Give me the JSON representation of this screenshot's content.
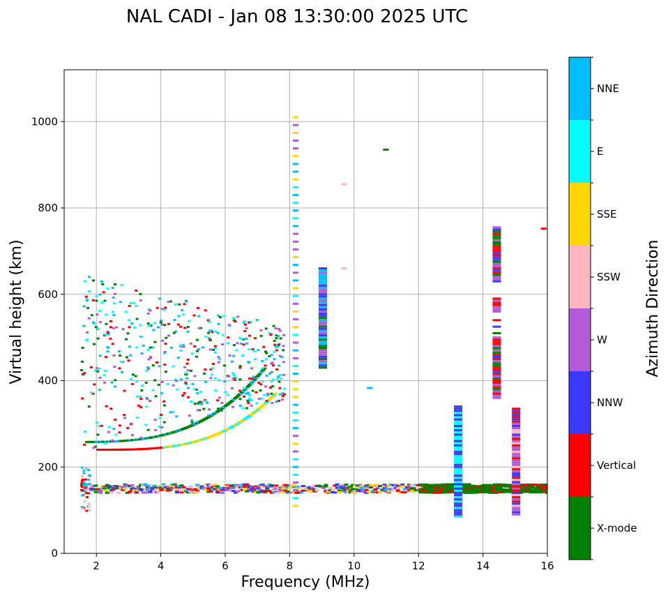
{
  "chart_data": {
    "type": "scatter",
    "title": "NAL CADI - Jan 08 13:30:00 2025 UTC",
    "xlabel": "Frequency (MHz)",
    "ylabel": "Virtual height (km)",
    "xlim": [
      1,
      16
    ],
    "ylim": [
      0,
      1120
    ],
    "xticks": [
      2,
      4,
      6,
      8,
      10,
      12,
      14,
      16
    ],
    "yticks": [
      0,
      200,
      400,
      600,
      800,
      1000
    ],
    "grid": true,
    "colorbar": {
      "label": "Azimuth Direction",
      "categories": [
        "X-mode",
        "Vertical",
        "NNW",
        "W",
        "SSW",
        "SSE",
        "E",
        "NNE"
      ],
      "colors": [
        "#008000",
        "#ff0000",
        "#3a3aff",
        "#b35ad6",
        "#ffb6c1",
        "#ffd700",
        "#00ffff",
        "#00bfff"
      ]
    },
    "traces": [
      {
        "name": "E-layer echoes",
        "x_range": [
          1.5,
          16.0
        ],
        "heights": [
          140,
          160
        ],
        "mix": [
          "Vertical",
          "SSW",
          "W",
          "SSE",
          "X-mode",
          "NNE",
          "NNW"
        ]
      },
      {
        "name": "F-layer O/X trace",
        "x_range": [
          1.5,
          7.5
        ],
        "height_range": [
          230,
          380
        ],
        "mix": [
          "Vertical",
          "X-mode",
          "SSE",
          "E",
          "NNE"
        ]
      },
      {
        "name": "Spread F",
        "x_range": [
          1.5,
          7.8
        ],
        "height_range": [
          230,
          640
        ],
        "mix": [
          "NNE",
          "Vertical",
          "X-mode",
          "W",
          "E"
        ]
      },
      {
        "name": "Low-height near 1.6 MHz",
        "x_range": [
          1.5,
          1.7
        ],
        "heights": [
          90,
          200
        ],
        "mix": [
          "Vertical",
          "NNE",
          "SSW"
        ]
      },
      {
        "name": "Column 8.2 MHz",
        "x": 8.2,
        "height_range": [
          110,
          1020
        ],
        "mix": [
          "SSE",
          "E",
          "NNE",
          "W"
        ]
      },
      {
        "name": "Column 9 MHz",
        "x": 9.0,
        "height_range": [
          430,
          660
        ],
        "mix": [
          "X-mode",
          "NNW",
          "NNE",
          "W"
        ]
      },
      {
        "name": "Column 13.2 MHz",
        "x": 13.2,
        "height_range": [
          85,
          340
        ],
        "mix": [
          "NNW",
          "E"
        ]
      },
      {
        "name": "Column 14.4 MHz",
        "x": 14.4,
        "height_range": [
          360,
          755
        ],
        "mix": [
          "Vertical",
          "X-mode",
          "NNW",
          "W"
        ]
      },
      {
        "name": "Column 15 MHz",
        "x": 15.0,
        "height_range": [
          90,
          335
        ],
        "mix": [
          "Vertical",
          "NNW",
          "W",
          "SSW"
        ]
      },
      {
        "name": "Isolated points",
        "points": [
          [
            10.9,
            935
          ],
          [
            9.6,
            855
          ],
          [
            15.8,
            752
          ],
          [
            10.4,
            383
          ],
          [
            9.6,
            660
          ]
        ]
      }
    ]
  }
}
